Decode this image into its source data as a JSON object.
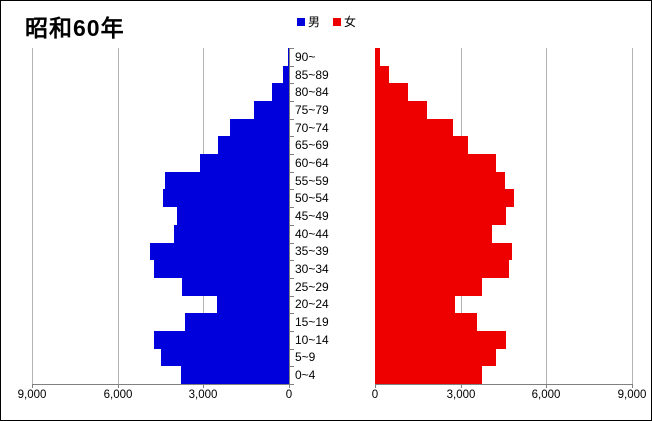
{
  "chart_data": {
    "type": "bar",
    "variant": "population-pyramid",
    "title": "昭和60年",
    "legend": {
      "male": "男",
      "female": "女",
      "position": "top-center"
    },
    "grid": true,
    "categories_top_to_bottom": [
      "90~",
      "85~89",
      "80~84",
      "75~79",
      "70~74",
      "65~69",
      "60~64",
      "55~59",
      "50~54",
      "45~49",
      "40~44",
      "35~39",
      "30~34",
      "25~29",
      "20~24",
      "15~19",
      "10~14",
      "5~9",
      "0~4"
    ],
    "series": [
      {
        "name": "男",
        "side": "left",
        "color": "#0000DD",
        "values": [
          40,
          210,
          590,
          1220,
          2060,
          2480,
          3100,
          4330,
          4400,
          3910,
          4030,
          4850,
          4710,
          3740,
          2510,
          3650,
          4730,
          4470,
          3770
        ]
      },
      {
        "name": "女",
        "side": "right",
        "color": "#EE0000",
        "values": [
          190,
          480,
          1140,
          1810,
          2720,
          3270,
          4230,
          4550,
          4870,
          4580,
          4080,
          4810,
          4700,
          3730,
          2800,
          3560,
          4580,
          4230,
          3730
        ]
      }
    ],
    "x_axis": {
      "max": 9000,
      "grid_interval": 3000,
      "left_tick_labels": [
        "9,000",
        "6,000",
        "3,000",
        "0"
      ],
      "right_tick_labels": [
        "0",
        "3,000",
        "6,000",
        "9,000"
      ]
    }
  },
  "colors": {
    "male": "#0000DD",
    "female": "#EE0000",
    "grid": "#B3B3B3",
    "axis": "#808080",
    "background": "#FFFFFF",
    "border": "#000000",
    "text": "#000000"
  }
}
